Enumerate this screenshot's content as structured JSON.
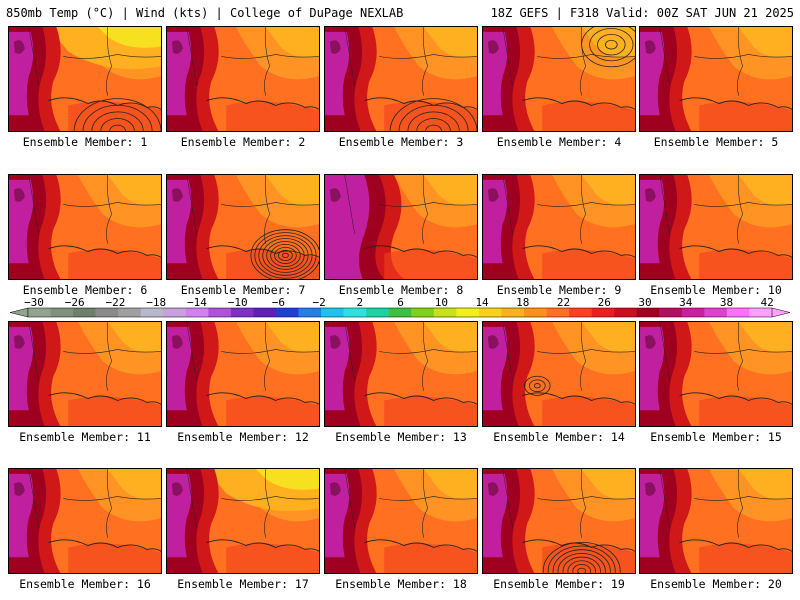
{
  "header": {
    "left": "850mb Temp (°C) | Wind (kts) | College of DuPage NEXLAB",
    "right": "18Z GEFS | F318 Valid: 00Z SAT JUN 21 2025"
  },
  "members": [
    {
      "label": "Ensemble Member: 1",
      "pattern": "hot-west-low-south"
    },
    {
      "label": "Ensemble Member: 2",
      "pattern": "hot-west"
    },
    {
      "label": "Ensemble Member: 3",
      "pattern": "warm-east-low-south"
    },
    {
      "label": "Ensemble Member: 4",
      "pattern": "hot-west-low-ne"
    },
    {
      "label": "Ensemble Member: 5",
      "pattern": "hot-west"
    },
    {
      "label": "Ensemble Member: 6",
      "pattern": "hot-west"
    },
    {
      "label": "Ensemble Member: 7",
      "pattern": "tropical-low-gulf"
    },
    {
      "label": "Ensemble Member: 8",
      "pattern": "hot-center"
    },
    {
      "label": "Ensemble Member: 9",
      "pattern": "hot-west"
    },
    {
      "label": "Ensemble Member: 10",
      "pattern": "hot-west"
    },
    {
      "label": "Ensemble Member: 11",
      "pattern": "hot-west"
    },
    {
      "label": "Ensemble Member: 12",
      "pattern": "hot-west"
    },
    {
      "label": "Ensemble Member: 13",
      "pattern": "hot-west"
    },
    {
      "label": "Ensemble Member: 14",
      "pattern": "low-center"
    },
    {
      "label": "Ensemble Member: 15",
      "pattern": "hot-west"
    },
    {
      "label": "Ensemble Member: 16",
      "pattern": "hot-west"
    },
    {
      "label": "Ensemble Member: 17",
      "pattern": "warm-north"
    },
    {
      "label": "Ensemble Member: 18",
      "pattern": "hot-west"
    },
    {
      "label": "Ensemble Member: 19",
      "pattern": "tropical-low-south"
    },
    {
      "label": "Ensemble Member: 20",
      "pattern": "hot-west"
    }
  ],
  "colorbar": {
    "unit": "°C",
    "labels": [
      "−30",
      "−26",
      "−22",
      "−18",
      "−14",
      "−10",
      "−6",
      "−2",
      "2",
      "6",
      "10",
      "14",
      "18",
      "22",
      "26",
      "30",
      "34",
      "38",
      "42"
    ],
    "colors": [
      "#8fa58f",
      "#7d937d",
      "#6b816b",
      "#8a8a8a",
      "#a0a0a0",
      "#b8b8cc",
      "#c8a0e0",
      "#d080f0",
      "#b050e0",
      "#8030c8",
      "#6020b8",
      "#2040d0",
      "#2080e8",
      "#20c0f0",
      "#30e0e0",
      "#20d0a0",
      "#40c040",
      "#80d020",
      "#c8e020",
      "#f0f020",
      "#ffd020",
      "#ffb020",
      "#ff9020",
      "#ff7020",
      "#ff4020",
      "#e82020",
      "#c81020",
      "#a00020",
      "#b01060",
      "#c820a0",
      "#e040d0",
      "#ff70ff",
      "#ffa0ff"
    ]
  }
}
